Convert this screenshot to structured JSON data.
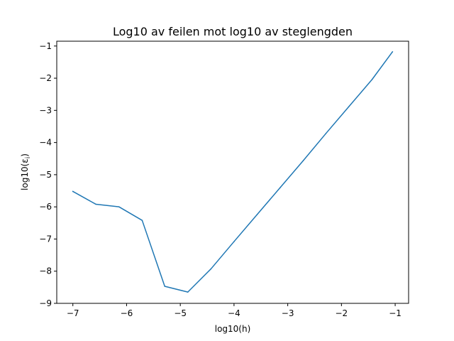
{
  "chart_data": {
    "type": "line",
    "title": "Log10 av feilen mot log10 av steglengden",
    "xlabel": "log10(h)",
    "ylabel": "log10(ε",
    "ylabel_subscript": "i",
    "ylabel_suffix": ")",
    "xlim": [
      -7.3,
      -0.75
    ],
    "ylim": [
      -9.0,
      -0.85
    ],
    "xticks": [
      -7,
      -6,
      -5,
      -4,
      -3,
      -2,
      -1
    ],
    "xtick_labels": [
      "−7",
      "−6",
      "−5",
      "−4",
      "−3",
      "−2",
      "−1"
    ],
    "yticks": [
      -9,
      -8,
      -7,
      -6,
      -5,
      -4,
      -3,
      -2,
      -1
    ],
    "ytick_labels": [
      "−9",
      "−8",
      "−7",
      "−6",
      "−5",
      "−4",
      "−3",
      "−2",
      "−1"
    ],
    "grid": false,
    "legend": null,
    "series": [
      {
        "color": "#1f77b4",
        "x": [
          -7.0,
          -6.57,
          -6.14,
          -5.71,
          -5.29,
          -4.86,
          -4.43,
          -4.0,
          -3.57,
          -3.14,
          -2.71,
          -2.29,
          -1.86,
          -1.43,
          -1.05
        ],
        "y": [
          -5.52,
          -5.92,
          -6.0,
          -6.42,
          -8.47,
          -8.65,
          -7.93,
          -7.08,
          -6.24,
          -5.4,
          -4.56,
          -3.72,
          -2.88,
          -2.04,
          -1.18
        ]
      }
    ]
  }
}
